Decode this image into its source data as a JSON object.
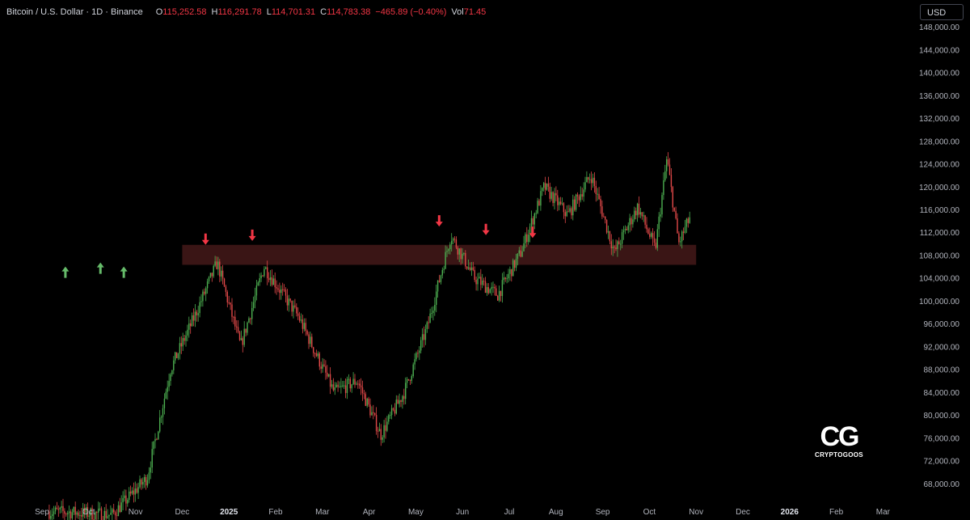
{
  "header": {
    "symbol": "Bitcoin / U.S. Dollar · 1D · Binance",
    "open_label": "O",
    "open": "115,252.58",
    "high_label": "H",
    "high": "116,291.78",
    "low_label": "L",
    "low": "114,701.31",
    "close_label": "C",
    "close": "114,783.38",
    "change": "−465.89 (−0.40%)",
    "vol_label": "Vol",
    "vol": "71.45"
  },
  "currency": "USD",
  "logo": {
    "name": "CRYPTOGOOS"
  },
  "colors": {
    "up": "#4caf50",
    "down": "#e04848",
    "zone": "#3d1616",
    "arrow_down": "#f23645",
    "arrow_up": "#66bb6a"
  },
  "chart_data": {
    "type": "candlestick",
    "x_ticks": [
      "Sep",
      "Oct",
      "Nov",
      "Dec",
      "2025",
      "Feb",
      "Mar",
      "Apr",
      "May",
      "Jun",
      "Jul",
      "Aug",
      "Sep",
      "Oct",
      "Nov",
      "Dec",
      "2026",
      "Feb",
      "Mar"
    ],
    "y_ticks": [
      "148,000.00",
      "144,000.00",
      "140,000.00",
      "136,000.00",
      "132,000.00",
      "128,000.00",
      "124,000.00",
      "120,000.00",
      "116,000.00",
      "112,000.00",
      "108,000.00",
      "104,000.00",
      "100,000.00",
      "96,000.00",
      "92,000.00",
      "88,000.00",
      "84,000.00",
      "80,000.00",
      "76,000.00",
      "72,000.00",
      "68,000.00"
    ],
    "ylim": [
      64000,
      151000
    ],
    "support_zone": {
      "from": "Dec",
      "to": "Nov",
      "low": 106300,
      "high": 109800
    },
    "price_path": [
      {
        "x": "Sep",
        "y": 63000
      },
      {
        "x": "Oct",
        "y": 62500
      },
      {
        "x": "Nov",
        "y": 69000
      },
      {
        "x": "Nov",
        "y": 88000
      },
      {
        "x": "Dec",
        "y": 97000
      },
      {
        "x": "Dec",
        "y": 106700
      },
      {
        "x": "2025",
        "y": 92000
      },
      {
        "x": "2025",
        "y": 106000
      },
      {
        "x": "Feb",
        "y": 97000
      },
      {
        "x": "Mar",
        "y": 84000
      },
      {
        "x": "Mar",
        "y": 86000
      },
      {
        "x": "Apr",
        "y": 76500
      },
      {
        "x": "Apr",
        "y": 84000
      },
      {
        "x": "May",
        "y": 95500
      },
      {
        "x": "May",
        "y": 111500
      },
      {
        "x": "Jun",
        "y": 104000
      },
      {
        "x": "Jun",
        "y": 101000
      },
      {
        "x": "Jul",
        "y": 108500
      },
      {
        "x": "Jul",
        "y": 120000
      },
      {
        "x": "Aug",
        "y": 115000
      },
      {
        "x": "Aug",
        "y": 122000
      },
      {
        "x": "Sep",
        "y": 108500
      },
      {
        "x": "Sep",
        "y": 116500
      },
      {
        "x": "Oct",
        "y": 109000
      },
      {
        "x": "Oct",
        "y": 125000
      },
      {
        "x": "Oct",
        "y": 110000
      },
      {
        "x": "Oct",
        "y": 114783
      }
    ],
    "resistance_markers": [
      {
        "x": "Dec",
        "y": 109800
      },
      {
        "x": "2025",
        "y": 110500
      },
      {
        "x": "May",
        "y": 113000
      },
      {
        "x": "Jun",
        "y": 111500
      },
      {
        "x": "Jul",
        "y": 111000
      }
    ],
    "support_markers": [
      {
        "x": "Sep",
        "y": 106000
      },
      {
        "x": "Oct",
        "y": 106700
      },
      {
        "x": "Oct",
        "y": 106000
      }
    ]
  }
}
